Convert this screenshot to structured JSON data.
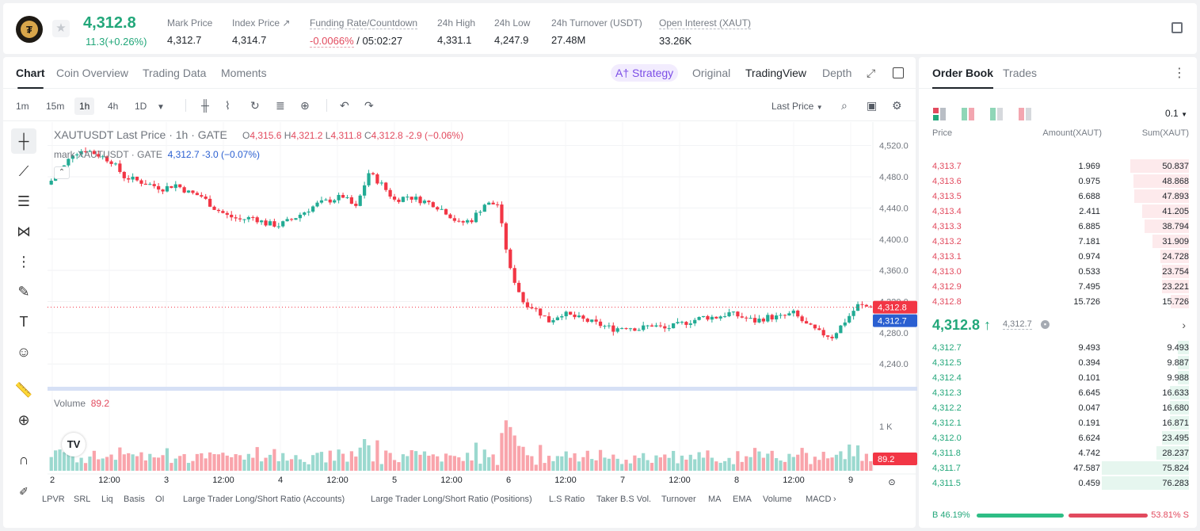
{
  "ticker": {
    "last_price": "4,312.8",
    "change": "11.3(+0.26%)",
    "stats": [
      {
        "label": "Mark Price",
        "value": "4,312.7"
      },
      {
        "label": "Index Price ↗",
        "value": "4,314.7"
      },
      {
        "label": "Funding Rate/Countdown",
        "rate": "-0.0066%",
        "countdown": "/ 05:02:27"
      },
      {
        "label": "24h High",
        "value": "4,331.1"
      },
      {
        "label": "24h Low",
        "value": "4,247.9"
      },
      {
        "label": "24h Turnover (USDT)",
        "value": "27.48M"
      },
      {
        "label": "Open Interest (XAUT)",
        "value": "33.26K"
      }
    ]
  },
  "chart_tabs": {
    "items": [
      "Chart",
      "Coin Overview",
      "Trading Data",
      "Moments"
    ],
    "strategy": "A† Strategy",
    "views": [
      "Original",
      "TradingView",
      "Depth"
    ]
  },
  "timeframes": [
    "1m",
    "15m",
    "1h",
    "4h",
    "1D"
  ],
  "price_type": "Last Price",
  "chart": {
    "title": "XAUTUSDT Last Price · 1h · GATE",
    "ohlc": {
      "o": "4,315.6",
      "h": "4,321.2",
      "l": "4,311.8",
      "c": "4,312.8",
      "chg": "-2.9 (−0.06%)"
    },
    "mark_label": "mark XAUTUSDT · GATE",
    "mark_value": "4,312.7 -3.0 (−0.07%)",
    "volume_label": "Volume",
    "volume_value": "89.2",
    "last_tag": "4,312.8",
    "mark_tag": "4,312.7",
    "volume_tag": "89.2",
    "volume_axis_label": "1 K",
    "colors": {
      "up": "#22ab94",
      "down": "#f23645"
    }
  },
  "chart_data": {
    "type": "candlestick",
    "price_ticks": [
      "4,520.0",
      "4,480.0",
      "4,440.0",
      "4,400.0",
      "4,360.0",
      "4,320.0",
      "4,280.0",
      "4,240.0"
    ],
    "ylim": [
      4225,
      4540
    ],
    "x_ticks": [
      "2",
      "12:00",
      "3",
      "12:00",
      "4",
      "12:00",
      "5",
      "12:00",
      "6",
      "12:00",
      "7",
      "12:00",
      "8",
      "12:00",
      "9"
    ],
    "close_path": [
      4470,
      4485,
      4510,
      4515,
      4508,
      4500,
      4480,
      4475,
      4470,
      4465,
      4470,
      4460,
      4455,
      4440,
      4430,
      4425,
      4428,
      4420,
      4418,
      4425,
      4435,
      4445,
      4450,
      4455,
      4440,
      4485,
      4470,
      4450,
      4455,
      4450,
      4445,
      4435,
      4420,
      4425,
      4445,
      4445,
      4360,
      4320,
      4310,
      4295,
      4305,
      4300,
      4295,
      4290,
      4285,
      4288,
      4285,
      4290,
      4285,
      4290,
      4295,
      4300,
      4300,
      4305,
      4300,
      4295,
      4300,
      4300,
      4305,
      4290,
      4280,
      4275,
      4295,
      4315,
      4312.8
    ]
  },
  "bottom_tools": [
    "LPVR",
    "SRL",
    "Liq",
    "Basis",
    "OI",
    "Large Trader Long/Short Ratio (Accounts)",
    "Large Trader Long/Short Ratio (Positions)",
    "L.S Ratio",
    "Taker B.S Vol.",
    "Turnover",
    "MA",
    "EMA",
    "Volume",
    "MACD"
  ],
  "orderbook": {
    "tabs": [
      "Order Book",
      "Trades"
    ],
    "precision": "0.1",
    "headers": {
      "price": "Price",
      "amount": "Amount(XAUT)",
      "sum": "Sum(XAUT)"
    },
    "asks": [
      {
        "price": "4,313.7",
        "amount": "1.969",
        "sum": "50.837",
        "depth": 0.67
      },
      {
        "price": "4,313.6",
        "amount": "0.975",
        "sum": "48.868",
        "depth": 0.64
      },
      {
        "price": "4,313.5",
        "amount": "6.688",
        "sum": "47.893",
        "depth": 0.63
      },
      {
        "price": "4,313.4",
        "amount": "2.411",
        "sum": "41.205",
        "depth": 0.54
      },
      {
        "price": "4,313.3",
        "amount": "6.885",
        "sum": "38.794",
        "depth": 0.51
      },
      {
        "price": "4,313.2",
        "amount": "7.181",
        "sum": "31.909",
        "depth": 0.42
      },
      {
        "price": "4,313.1",
        "amount": "0.974",
        "sum": "24.728",
        "depth": 0.33
      },
      {
        "price": "4,313.0",
        "amount": "0.533",
        "sum": "23.754",
        "depth": 0.31
      },
      {
        "price": "4,312.9",
        "amount": "7.495",
        "sum": "23.221",
        "depth": 0.31
      },
      {
        "price": "4,312.8",
        "amount": "15.726",
        "sum": "15.726",
        "depth": 0.21
      }
    ],
    "mid_price": "4,312.8 ↑",
    "mid_mark": "4,312.7",
    "bids": [
      {
        "price": "4,312.7",
        "amount": "9.493",
        "sum": "9.493",
        "depth": 0.13
      },
      {
        "price": "4,312.5",
        "amount": "0.394",
        "sum": "9.887",
        "depth": 0.13
      },
      {
        "price": "4,312.4",
        "amount": "0.101",
        "sum": "9.988",
        "depth": 0.13
      },
      {
        "price": "4,312.3",
        "amount": "6.645",
        "sum": "16.633",
        "depth": 0.22
      },
      {
        "price": "4,312.2",
        "amount": "0.047",
        "sum": "16.680",
        "depth": 0.22
      },
      {
        "price": "4,312.1",
        "amount": "0.191",
        "sum": "16.871",
        "depth": 0.22
      },
      {
        "price": "4,312.0",
        "amount": "6.624",
        "sum": "23.495",
        "depth": 0.31
      },
      {
        "price": "4,311.8",
        "amount": "4.742",
        "sum": "28.237",
        "depth": 0.37
      },
      {
        "price": "4,311.7",
        "amount": "47.587",
        "sum": "75.824",
        "depth": 1.0
      },
      {
        "price": "4,311.5",
        "amount": "0.459",
        "sum": "76.283",
        "depth": 1.0
      }
    ],
    "buy_ratio": "B 46.19%",
    "sell_ratio": "53.81% S"
  }
}
